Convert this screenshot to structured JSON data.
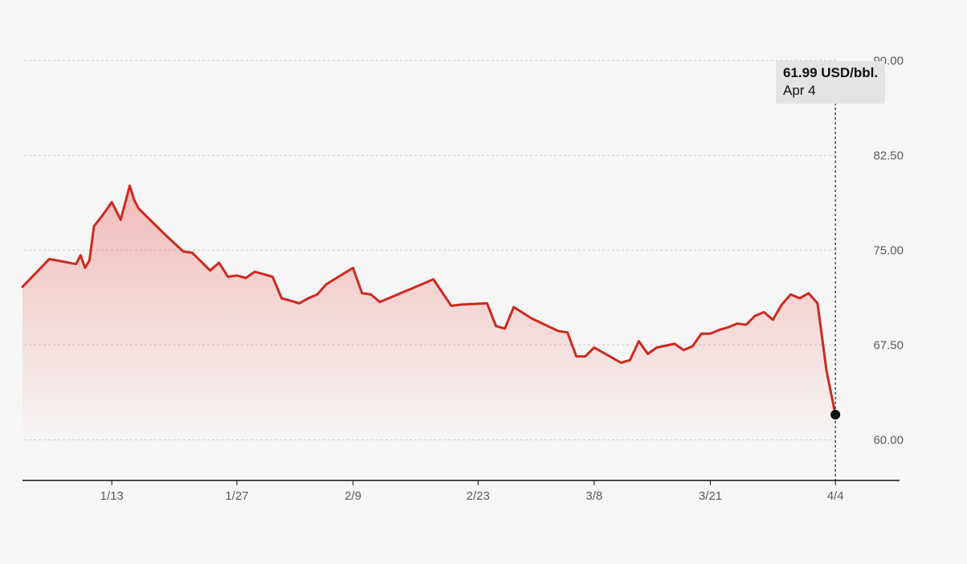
{
  "chart_data": {
    "type": "area",
    "title": "",
    "xlabel": "",
    "ylabel": "",
    "unit": "USD/bbl.",
    "line_color": "#cc2a1f",
    "fill_color": "#e8332a",
    "grid": true,
    "ylim": [
      56,
      92
    ],
    "yticks": [
      {
        "value": 90,
        "label": "90.00"
      },
      {
        "value": 82.5,
        "label": "82.50"
      },
      {
        "value": 75,
        "label": "75.00"
      },
      {
        "value": 67.5,
        "label": "67.50"
      },
      {
        "value": 60,
        "label": "60.00"
      }
    ],
    "xlim": [
      "2025-01-03",
      "2025-04-11"
    ],
    "xticks": [
      {
        "date": "2025-01-13",
        "label": "1/13"
      },
      {
        "date": "2025-01-27",
        "label": "1/27"
      },
      {
        "date": "2025-02-09",
        "label": "2/9"
      },
      {
        "date": "2025-02-23",
        "label": "2/23"
      },
      {
        "date": "2025-03-08",
        "label": "3/8"
      },
      {
        "date": "2025-03-21",
        "label": "3/21"
      },
      {
        "date": "2025-04-04",
        "label": "4/4"
      }
    ],
    "series": [
      {
        "x": [
          "2025-01-03",
          "2025-01-06",
          "2025-01-09",
          "2025-01-09T12",
          "2025-01-10",
          "2025-01-10T12",
          "2025-01-11",
          "2025-01-12",
          "2025-01-13",
          "2025-01-14",
          "2025-01-15",
          "2025-01-15T12",
          "2025-01-16",
          "2025-01-17",
          "2025-01-19",
          "2025-01-21",
          "2025-01-22",
          "2025-01-24",
          "2025-01-25",
          "2025-01-26",
          "2025-01-27",
          "2025-01-28",
          "2025-01-29",
          "2025-01-31",
          "2025-02-01",
          "2025-02-03",
          "2025-02-04",
          "2025-02-05",
          "2025-02-06",
          "2025-02-09",
          "2025-02-10",
          "2025-02-11",
          "2025-02-12",
          "2025-02-13",
          "2025-02-15",
          "2025-02-18",
          "2025-02-20",
          "2025-02-21",
          "2025-02-24",
          "2025-02-25",
          "2025-02-26",
          "2025-02-27",
          "2025-03-01",
          "2025-03-04",
          "2025-03-05",
          "2025-03-06",
          "2025-03-07",
          "2025-03-08",
          "2025-03-09",
          "2025-03-10",
          "2025-03-11",
          "2025-03-12",
          "2025-03-13",
          "2025-03-14",
          "2025-03-15",
          "2025-03-17",
          "2025-03-18",
          "2025-03-19",
          "2025-03-20",
          "2025-03-21",
          "2025-03-22",
          "2025-03-23",
          "2025-03-24",
          "2025-03-25",
          "2025-03-26",
          "2025-03-27",
          "2025-03-28",
          "2025-03-29",
          "2025-03-30",
          "2025-03-31",
          "2025-04-01",
          "2025-04-02",
          "2025-04-03",
          "2025-04-04"
        ],
        "values": [
          72.1,
          74.3,
          73.9,
          74.6,
          73.6,
          74.2,
          76.9,
          77.8,
          78.8,
          77.4,
          80.1,
          79.0,
          78.3,
          77.6,
          76.2,
          74.9,
          74.8,
          73.4,
          74.0,
          72.9,
          73.0,
          72.8,
          73.3,
          72.9,
          71.2,
          70.8,
          71.2,
          71.5,
          72.3,
          73.6,
          71.6,
          71.5,
          70.9,
          71.2,
          71.8,
          72.7,
          70.6,
          70.7,
          70.8,
          69.0,
          68.8,
          70.5,
          69.6,
          68.6,
          68.5,
          66.6,
          66.6,
          67.3,
          66.9,
          66.5,
          66.1,
          66.3,
          67.8,
          66.8,
          67.3,
          67.6,
          67.1,
          67.4,
          68.4,
          68.4,
          68.7,
          68.9,
          69.2,
          69.1,
          69.8,
          70.1,
          69.5,
          70.7,
          71.5,
          71.2,
          71.6,
          70.8,
          65.5,
          61.99
        ]
      }
    ],
    "tooltip": {
      "value": "61.99 USD/bbl.",
      "date": "Apr 4"
    }
  }
}
